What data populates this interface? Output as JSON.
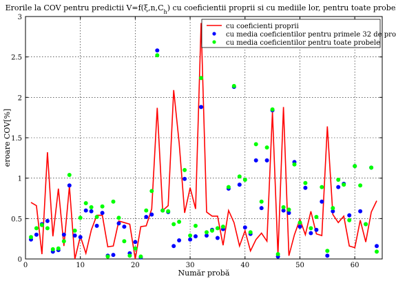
{
  "chart_data": {
    "type": "line",
    "title": "Erorile la COV pentru predictii V=f(ξ,n,C",
    "title_sub": "h",
    "title_tail": ") cu coeficientii proprii si cu mediile lor, pentru toate probele",
    "xlabel": "Număr probă",
    "ylabel": "eroare COV[%]",
    "xlim": [
      0,
      65
    ],
    "ylim": [
      0,
      3
    ],
    "xticks": [
      0,
      10,
      20,
      30,
      40,
      50,
      60
    ],
    "yticks": [
      0,
      0.5,
      1,
      1.5,
      2,
      2.5,
      3
    ],
    "grid": true,
    "legend_position": "top-right",
    "x": [
      1,
      2,
      3,
      4,
      5,
      6,
      7,
      8,
      9,
      10,
      11,
      12,
      13,
      14,
      15,
      16,
      17,
      18,
      19,
      20,
      21,
      22,
      23,
      24,
      25,
      26,
      27,
      28,
      29,
      30,
      31,
      32,
      33,
      34,
      35,
      36,
      37,
      38,
      39,
      40,
      41,
      42,
      43,
      44,
      45,
      46,
      47,
      48,
      49,
      50,
      51,
      52,
      53,
      54,
      55,
      56,
      57,
      58,
      59,
      60,
      61,
      62,
      63,
      64
    ],
    "series": [
      {
        "name": "cu coeficienti proprii",
        "style": "line",
        "color": "#ff0000",
        "values": [
          0.7,
          0.66,
          0.06,
          1.32,
          0.28,
          0.87,
          0.16,
          0.9,
          0.0,
          0.28,
          0.07,
          0.36,
          0.54,
          0.54,
          0.15,
          0.16,
          0.47,
          0.45,
          0.43,
          0.0,
          0.4,
          0.41,
          0.62,
          1.87,
          0.6,
          0.66,
          2.09,
          1.44,
          0.57,
          0.88,
          0.62,
          2.92,
          0.58,
          0.53,
          0.53,
          0.17,
          0.6,
          0.45,
          0.16,
          0.35,
          0.1,
          0.24,
          0.32,
          0.22,
          1.82,
          0.05,
          1.88,
          0.04,
          0.3,
          0.49,
          0.3,
          0.59,
          0.31,
          0.29,
          1.64,
          0.55,
          0.45,
          0.53,
          0.16,
          0.14,
          0.48,
          0.21,
          0.58,
          0.72
        ]
      },
      {
        "name": "cu media coeficientilor pentru primele 32 de probe",
        "style": "marker",
        "color": "#0000ff",
        "values": [
          0.24,
          0.3,
          0.43,
          0.47,
          0.09,
          0.11,
          0.3,
          0.91,
          0.29,
          0.27,
          0.6,
          0.59,
          0.41,
          0.57,
          0.04,
          0.05,
          0.44,
          0.4,
          0.07,
          0.21,
          0.02,
          0.52,
          0.55,
          2.58,
          0.6,
          0.58,
          0.16,
          0.23,
          0.99,
          0.24,
          0.28,
          1.88,
          0.29,
          0.36,
          0.26,
          0.37,
          0.87,
          2.13,
          0.92,
          0.39,
          0.31,
          1.22,
          0.63,
          1.22,
          1.84,
          0.03,
          0.6,
          0.57,
          1.2,
          0.4,
          0.88,
          0.32,
          0.36,
          0.71,
          0.04,
          0.59,
          0.89,
          0.93,
          0.54,
          1.15,
          0.59,
          0.43,
          1.13,
          0.16
        ]
      },
      {
        "name": "cu media coeficientilor pentru toate probele",
        "style": "marker",
        "color": "#00ff00",
        "values": [
          0.27,
          0.38,
          0.42,
          0.38,
          0.12,
          0.13,
          0.22,
          1.04,
          0.35,
          0.51,
          0.69,
          0.64,
          0.52,
          0.65,
          0.03,
          0.71,
          0.51,
          0.22,
          0.04,
          0.13,
          0.03,
          0.6,
          0.84,
          2.52,
          0.6,
          0.59,
          0.43,
          0.46,
          1.1,
          0.29,
          0.41,
          2.24,
          0.33,
          0.35,
          0.38,
          0.4,
          0.89,
          2.14,
          1.02,
          0.98,
          0.33,
          1.42,
          0.71,
          1.38,
          1.85,
          0.06,
          0.64,
          0.61,
          1.17,
          0.45,
          0.94,
          0.38,
          0.52,
          0.89,
          0.1,
          0.63,
          0.98,
          0.92,
          0.48,
          1.15,
          0.91,
          0.43,
          1.13,
          0.09
        ]
      }
    ]
  }
}
